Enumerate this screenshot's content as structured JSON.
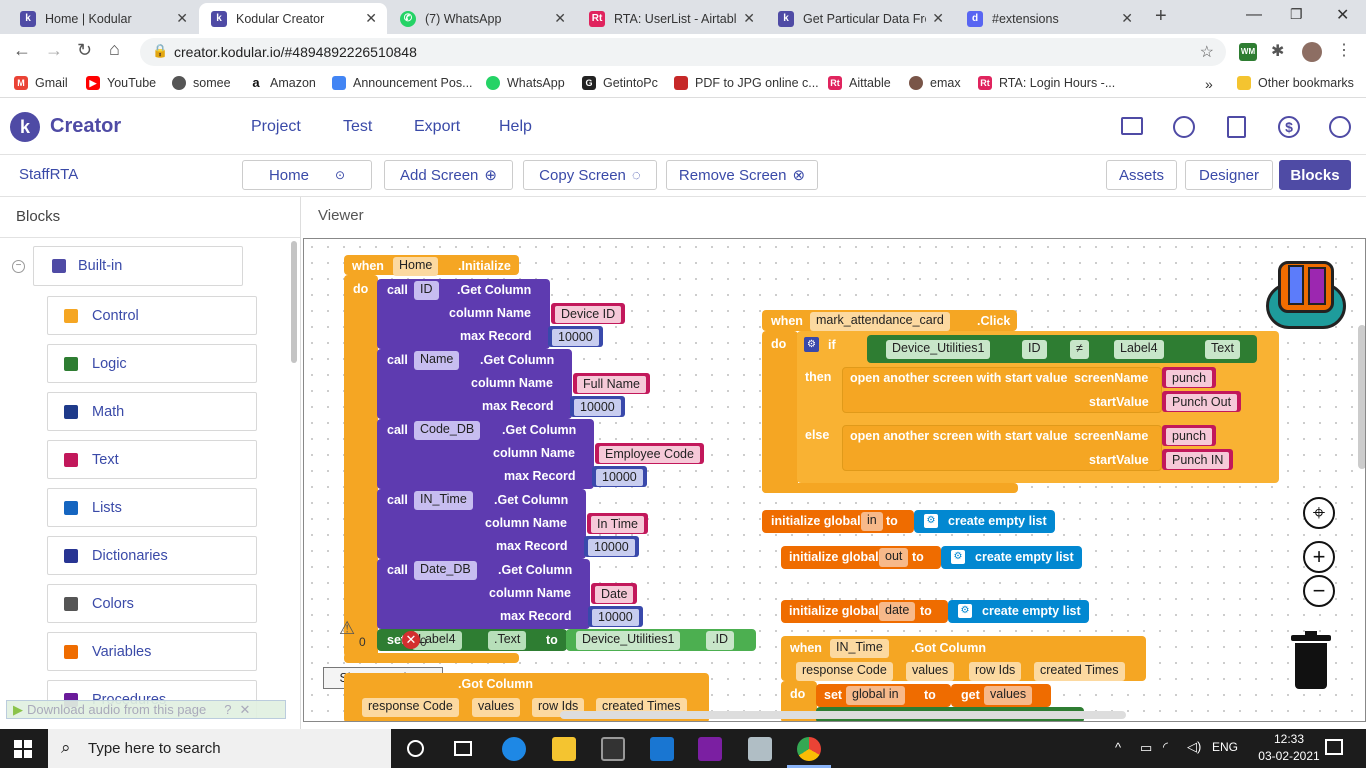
{
  "browser": {
    "tabs": [
      {
        "title": "Home | Kodular",
        "icon": "kodular-icon",
        "color": "#4f4ba5"
      },
      {
        "title": "Kodular Creator",
        "icon": "kodular-icon",
        "color": "#4f4ba5"
      },
      {
        "title": "(7) WhatsApp",
        "icon": "whatsapp-icon",
        "color": "#25d366"
      },
      {
        "title": "RTA: UserList - Airtable",
        "icon": "airtable-icon",
        "color": "#e0245e"
      },
      {
        "title": "Get Particular Data Fron",
        "icon": "kodular-icon",
        "color": "#4f4ba5"
      },
      {
        "title": "#extensions",
        "icon": "discord-icon",
        "color": "#5865f2"
      }
    ],
    "url": "creator.kodular.io/#4894892226510848",
    "bookmarks": [
      "Gmail",
      "YouTube",
      "somee",
      "Amazon",
      "Announcement Pos...",
      "WhatsApp",
      "GetintoPc",
      "PDF to JPG online c...",
      "Aittable",
      "emax",
      "RTA: Login Hours -...",
      "Other bookmarks"
    ]
  },
  "app": {
    "logo_text": "Creator",
    "nav": [
      "Project",
      "Test",
      "Export",
      "Help"
    ],
    "project_name": "StaffRTA",
    "screen_select": "Home",
    "add_screen": "Add Screen",
    "copy_screen": "Copy Screen",
    "remove_screen": "Remove Screen",
    "assets": "Assets",
    "designer": "Designer",
    "blocks": "Blocks",
    "accent": "#4f4ba5"
  },
  "sidebar": {
    "title": "Blocks",
    "builtin": "Built-in",
    "items": [
      {
        "label": "Control",
        "color": "#f5a623"
      },
      {
        "label": "Logic",
        "color": "#2e7d32"
      },
      {
        "label": "Math",
        "color": "#1e3a8a"
      },
      {
        "label": "Text",
        "color": "#c2185b"
      },
      {
        "label": "Lists",
        "color": "#1565c0"
      },
      {
        "label": "Dictionaries",
        "color": "#283593"
      },
      {
        "label": "Colors",
        "color": "#555555"
      },
      {
        "label": "Variables",
        "color": "#ef6c00"
      },
      {
        "label": "Procedures",
        "color": "#6a1b9a"
      }
    ]
  },
  "viewer": {
    "title": "Viewer",
    "warnings_count": "0",
    "errors_count": "0",
    "show_warnings": "Show Warnings",
    "download_banner": "Download audio from this page"
  },
  "blocks": {
    "init": {
      "when": "when",
      "component": "Home",
      "event": ".Initialize",
      "do": "do"
    },
    "calls": [
      {
        "call": "call",
        "comp": "ID",
        "method": ".Get Column",
        "cn_label": "column Name",
        "cn": "Device ID",
        "mr_label": "max Record",
        "mr": "10000"
      },
      {
        "call": "call",
        "comp": "Name",
        "method": ".Get Column",
        "cn_label": "column Name",
        "cn": "Full Name",
        "mr_label": "max Record",
        "mr": "10000"
      },
      {
        "call": "call",
        "comp": "Code_DB",
        "method": ".Get Column",
        "cn_label": "column Name",
        "cn": "Employee Code",
        "mr_label": "max Record",
        "mr": "10000"
      },
      {
        "call": "call",
        "comp": "IN_Time",
        "method": ".Get Column",
        "cn_label": "column Name",
        "cn": "In Time",
        "mr_label": "max Record",
        "mr": "10000"
      },
      {
        "call": "call",
        "comp": "Date_DB",
        "method": ".Get Column",
        "cn_label": "column Name",
        "cn": "Date",
        "mr_label": "max Record",
        "mr": "10000"
      }
    ],
    "setter": {
      "set": "set",
      "comp": "Label4",
      "prop": ".Text",
      "to": "to",
      "comp2": "Device_Utilities1",
      "prop2": ".ID"
    },
    "bottom_event": {
      "event": ".Got Column",
      "p1": "response Code",
      "p2": "values",
      "p3": "row Ids",
      "p4": "created Times"
    },
    "click": {
      "when": "when",
      "component": "mark_attendance_card",
      "event": ".Click",
      "do": "do",
      "if": "if",
      "then": "then",
      "else": "else",
      "lhs": "Device_Utilities1",
      "lhs_prop": "ID",
      "op": "≠",
      "rhs": "Label4",
      "rhs_prop": "Text",
      "open": "open another screen with start value",
      "sn_label": "screenName",
      "sv_label": "startValue",
      "then_screen": "punch",
      "then_value": "Punch Out",
      "else_screen": "punch",
      "else_value": "Punch IN"
    },
    "globals": [
      {
        "prefix": "initialize global",
        "name": "in",
        "to": "to",
        "value": "create empty list"
      },
      {
        "prefix": "initialize global",
        "name": "out",
        "to": "to",
        "value": "create empty list"
      },
      {
        "prefix": "initialize global",
        "name": "date",
        "to": "to",
        "value": "create empty list"
      }
    ],
    "got": {
      "when": "when",
      "component": "IN_Time",
      "event": ".Got Column",
      "p1": "response Code",
      "p2": "values",
      "p3": "row Ids",
      "p4": "created Times",
      "do": "do",
      "set": "set",
      "var": "global in",
      "to": "to",
      "get": "get",
      "getvar": "values"
    }
  },
  "taskbar": {
    "search_placeholder": "Type here to search",
    "lang": "ENG",
    "time": "12:33",
    "date": "03-02-2021"
  }
}
